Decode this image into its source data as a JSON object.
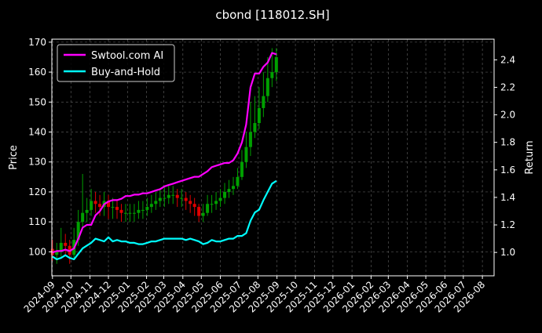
{
  "chart_data": {
    "type": "line",
    "title": "cbond [118012.SH]",
    "ylabel": "Price",
    "y2label": "Return",
    "ylim": [
      92,
      171
    ],
    "y2lim": [
      0.83,
      2.55
    ],
    "yticks": [
      100,
      110,
      120,
      130,
      140,
      150,
      160,
      170
    ],
    "y2ticks": [
      1.0,
      1.2,
      1.4,
      1.6,
      1.8,
      2.0,
      2.2,
      2.4
    ],
    "y2tick_labels": [
      "1.0",
      "1.2",
      "1.4",
      "1.6",
      "1.8",
      "2.0",
      "2.2",
      "2.4"
    ],
    "x_range": [
      "2024-08-31",
      "2026-08-20"
    ],
    "x_ticks": [
      "2024-09",
      "2024-10",
      "2024-11",
      "2024-12",
      "2025-01",
      "2025-02",
      "2025-03",
      "2025-04",
      "2025-05",
      "2025-06",
      "2025-07",
      "2025-08",
      "2025-09",
      "2025-10",
      "2025-11",
      "2025-12",
      "2026-01",
      "2026-02",
      "2026-03",
      "2026-04",
      "2026-05",
      "2026-06",
      "2026-07",
      "2026-08"
    ],
    "grid": true,
    "legend_position": "top-left",
    "colors": {
      "background": "#000000",
      "text": "#ffffff",
      "grid": "#555555",
      "ai": "#ff00ff",
      "bh": "#00ffff",
      "candle_up": "#00a000",
      "candle_down": "#e00000"
    },
    "series": [
      {
        "name": "Swtool.com AI",
        "axis": "right",
        "x": [
          "2024-09-01",
          "2024-09-08",
          "2024-09-15",
          "2024-09-22",
          "2024-09-29",
          "2024-10-06",
          "2024-10-13",
          "2024-10-20",
          "2024-10-27",
          "2024-11-03",
          "2024-11-10",
          "2024-11-17",
          "2024-11-24",
          "2024-12-01",
          "2024-12-08",
          "2024-12-15",
          "2024-12-22",
          "2024-12-29",
          "2025-01-05",
          "2025-01-12",
          "2025-01-19",
          "2025-01-26",
          "2025-02-02",
          "2025-02-09",
          "2025-02-16",
          "2025-02-23",
          "2025-03-02",
          "2025-03-09",
          "2025-03-16",
          "2025-03-23",
          "2025-03-30",
          "2025-04-06",
          "2025-04-13",
          "2025-04-20",
          "2025-04-27",
          "2025-05-04",
          "2025-05-11",
          "2025-05-18",
          "2025-05-25",
          "2025-06-01",
          "2025-06-08",
          "2025-06-15",
          "2025-06-22",
          "2025-06-29",
          "2025-07-06",
          "2025-07-13",
          "2025-07-20",
          "2025-07-27",
          "2025-08-03",
          "2025-08-10",
          "2025-08-17",
          "2025-08-24",
          "2025-08-31"
        ],
        "values": [
          1.0,
          1.01,
          1.01,
          1.02,
          1.01,
          1.03,
          1.1,
          1.18,
          1.2,
          1.2,
          1.27,
          1.3,
          1.35,
          1.37,
          1.38,
          1.38,
          1.39,
          1.41,
          1.41,
          1.42,
          1.42,
          1.43,
          1.43,
          1.44,
          1.45,
          1.46,
          1.48,
          1.49,
          1.5,
          1.51,
          1.52,
          1.53,
          1.54,
          1.55,
          1.55,
          1.57,
          1.59,
          1.62,
          1.63,
          1.64,
          1.65,
          1.65,
          1.67,
          1.72,
          1.8,
          1.93,
          2.2,
          2.3,
          2.3,
          2.35,
          2.38,
          2.45,
          2.44
        ]
      },
      {
        "name": "Buy-and-Hold",
        "axis": "right",
        "x": [
          "2024-09-01",
          "2024-09-08",
          "2024-09-15",
          "2024-09-22",
          "2024-09-29",
          "2024-10-06",
          "2024-10-13",
          "2024-10-20",
          "2024-10-27",
          "2024-11-03",
          "2024-11-10",
          "2024-11-17",
          "2024-11-24",
          "2024-12-01",
          "2024-12-08",
          "2024-12-15",
          "2024-12-22",
          "2024-12-29",
          "2025-01-05",
          "2025-01-12",
          "2025-01-19",
          "2025-01-26",
          "2025-02-02",
          "2025-02-09",
          "2025-02-16",
          "2025-02-23",
          "2025-03-02",
          "2025-03-09",
          "2025-03-16",
          "2025-03-23",
          "2025-03-30",
          "2025-04-06",
          "2025-04-13",
          "2025-04-20",
          "2025-04-27",
          "2025-05-04",
          "2025-05-11",
          "2025-05-18",
          "2025-05-25",
          "2025-06-01",
          "2025-06-08",
          "2025-06-15",
          "2025-06-22",
          "2025-06-29",
          "2025-07-06",
          "2025-07-13",
          "2025-07-20",
          "2025-07-27",
          "2025-08-03",
          "2025-08-10",
          "2025-08-17",
          "2025-08-24",
          "2025-08-31"
        ],
        "values": [
          0.97,
          0.95,
          0.96,
          0.98,
          0.96,
          0.95,
          0.99,
          1.03,
          1.05,
          1.07,
          1.1,
          1.09,
          1.08,
          1.11,
          1.08,
          1.09,
          1.08,
          1.08,
          1.07,
          1.07,
          1.06,
          1.06,
          1.07,
          1.08,
          1.08,
          1.09,
          1.1,
          1.1,
          1.1,
          1.1,
          1.1,
          1.09,
          1.1,
          1.09,
          1.08,
          1.06,
          1.07,
          1.09,
          1.08,
          1.08,
          1.09,
          1.1,
          1.1,
          1.12,
          1.12,
          1.14,
          1.23,
          1.29,
          1.31,
          1.38,
          1.44,
          1.5,
          1.52
        ]
      }
    ],
    "price": {
      "axis": "left",
      "x": [
        "2024-09-01",
        "2024-09-08",
        "2024-09-15",
        "2024-09-22",
        "2024-09-29",
        "2024-10-06",
        "2024-10-13",
        "2024-10-20",
        "2024-10-27",
        "2024-11-03",
        "2024-11-10",
        "2024-11-17",
        "2024-11-24",
        "2024-12-01",
        "2024-12-08",
        "2024-12-15",
        "2024-12-22",
        "2024-12-29",
        "2025-01-05",
        "2025-01-12",
        "2025-01-19",
        "2025-01-26",
        "2025-02-02",
        "2025-02-09",
        "2025-02-16",
        "2025-02-23",
        "2025-03-02",
        "2025-03-09",
        "2025-03-16",
        "2025-03-23",
        "2025-03-30",
        "2025-04-06",
        "2025-04-13",
        "2025-04-20",
        "2025-04-27",
        "2025-05-04",
        "2025-05-11",
        "2025-05-18",
        "2025-05-25",
        "2025-06-01",
        "2025-06-08",
        "2025-06-15",
        "2025-06-22",
        "2025-06-29",
        "2025-07-06",
        "2025-07-13",
        "2025-07-20",
        "2025-07-27",
        "2025-08-03",
        "2025-08-10",
        "2025-08-17",
        "2025-08-24",
        "2025-08-31"
      ],
      "open": [
        101,
        99,
        100,
        103,
        102,
        99,
        104,
        110,
        113,
        114,
        117,
        116,
        115,
        117,
        115,
        115,
        114,
        113,
        113,
        113,
        113,
        114,
        114,
        115,
        116,
        117,
        118,
        118,
        119,
        119,
        118,
        118,
        117,
        116,
        115,
        112,
        113,
        116,
        116,
        117,
        118,
        120,
        121,
        122,
        125,
        130,
        135,
        140,
        143,
        148,
        152,
        158,
        160
      ],
      "close": [
        99,
        100,
        103,
        102,
        99,
        104,
        110,
        113,
        114,
        117,
        116,
        115,
        117,
        115,
        115,
        114,
        113,
        113,
        113,
        113,
        114,
        114,
        115,
        116,
        117,
        118,
        118,
        119,
        119,
        118,
        118,
        117,
        116,
        115,
        112,
        113,
        116,
        116,
        117,
        118,
        120,
        121,
        122,
        125,
        130,
        135,
        140,
        143,
        148,
        152,
        158,
        160,
        165
      ],
      "high": [
        104,
        103,
        108,
        106,
        104,
        108,
        114,
        126,
        118,
        121,
        120,
        119,
        120,
        119,
        118,
        117,
        116,
        116,
        116,
        116,
        117,
        117,
        118,
        119,
        120,
        121,
        122,
        122,
        122,
        121,
        121,
        120,
        119,
        118,
        116,
        116,
        119,
        119,
        120,
        121,
        123,
        124,
        125,
        128,
        134,
        140,
        150,
        152,
        155,
        160,
        165,
        168,
        168
      ],
      "low": [
        97,
        96,
        98,
        99,
        96,
        98,
        102,
        108,
        110,
        112,
        113,
        112,
        112,
        111,
        111,
        111,
        110,
        110,
        110,
        110,
        111,
        111,
        112,
        113,
        114,
        115,
        115,
        116,
        116,
        115,
        115,
        114,
        113,
        112,
        110,
        110,
        112,
        113,
        114,
        115,
        116,
        118,
        119,
        121,
        124,
        128,
        132,
        138,
        141,
        145,
        150,
        155,
        157
      ]
    }
  }
}
